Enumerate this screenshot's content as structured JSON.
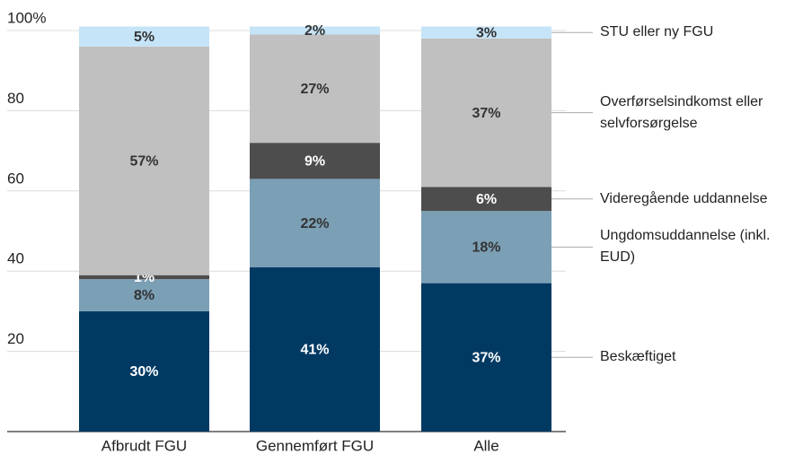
{
  "chart_data": {
    "type": "stacked_bar",
    "categories": [
      "Afbrudt FGU",
      "Gennemført FGU",
      "Alle"
    ],
    "series": [
      {
        "name": "Beskæftiget",
        "color": "#003a63",
        "values": [
          30,
          41,
          37
        ],
        "value_labels": [
          "30%",
          "41%",
          "37%"
        ]
      },
      {
        "name": "Ungdomsuddannelse (inkl. EUD)",
        "color": "#7b9fb5",
        "values": [
          8,
          22,
          18
        ],
        "value_labels": [
          "8%",
          "22%",
          "18%"
        ]
      },
      {
        "name": "Videregående uddannelse",
        "color": "#4d4d4d",
        "values": [
          1,
          9,
          6
        ],
        "value_labels": [
          "1%",
          "9%",
          "6%"
        ]
      },
      {
        "name": "Overførselsindkomst eller selvforsørgelse",
        "color": "#c0c0c0",
        "values": [
          57,
          27,
          37
        ],
        "value_labels": [
          "57%",
          "27%",
          "37%"
        ]
      },
      {
        "name": "STU eller ny FGU",
        "color": "#c6e4f7",
        "values": [
          5,
          2,
          3
        ],
        "value_labels": [
          "5%",
          "2%",
          "3%"
        ]
      }
    ],
    "ylim": [
      0,
      100
    ],
    "yticks": [
      20,
      40,
      60,
      80,
      {
        "value": 100,
        "label": "100%"
      }
    ],
    "grid": true,
    "legend": "right"
  }
}
